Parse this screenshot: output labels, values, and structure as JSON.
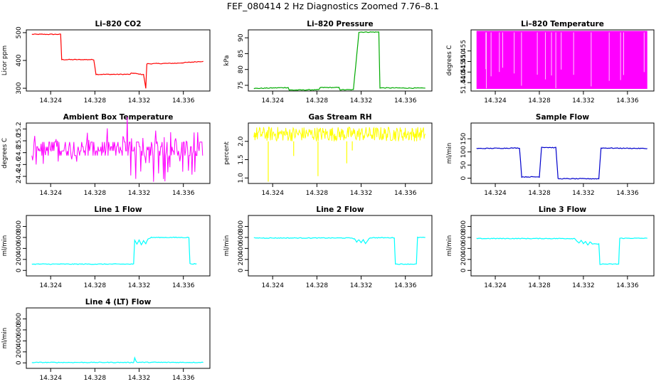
{
  "title": "FEF_080414  2 Hz Diagnostics Zoomed 7.76–8.1",
  "chart_data": [
    {
      "type": "line",
      "title": "Li–820 CO2",
      "ylabel": "Licor ppm",
      "color": "#ff0000",
      "xlim": [
        14.3218,
        14.3384
      ],
      "x_ticks": [
        "14.324",
        "14.328",
        "14.332",
        "14.336"
      ],
      "ylim": [
        290,
        510
      ],
      "y_ticks": [
        "300",
        "400",
        "500"
      ],
      "x": [
        14.3223,
        14.3249,
        14.325,
        14.3279,
        14.3281,
        14.3312,
        14.3313,
        14.3322,
        14.3324,
        14.3326,
        14.3327,
        14.3354,
        14.3378
      ],
      "y": [
        494,
        494,
        403,
        403,
        350,
        350,
        355,
        350,
        350,
        300,
        388,
        390,
        397
      ]
    },
    {
      "type": "line",
      "title": "Li–820 Pressure",
      "ylabel": "kPa",
      "color": "#00aa00",
      "xlim": [
        14.3218,
        14.3384
      ],
      "x_ticks": [
        "14.324",
        "14.328",
        "14.332",
        "14.336"
      ],
      "ylim": [
        73.2,
        92.5
      ],
      "y_ticks": [
        "75",
        "80",
        "85",
        "90"
      ],
      "x": [
        14.3223,
        14.3254,
        14.3255,
        14.3282,
        14.3283,
        14.33,
        14.3301,
        14.3313,
        14.3318,
        14.3336,
        14.3337,
        14.3378
      ],
      "y": [
        74,
        74.3,
        73.5,
        73.6,
        74.3,
        74.3,
        73.6,
        73.6,
        91.8,
        91.8,
        74.2,
        74.1
      ]
    },
    {
      "type": "line",
      "title": "Li–820 Temperature",
      "ylabel": "degrees C",
      "color": "#ff00ff",
      "xlim": [
        14.3218,
        14.3384
      ],
      "x_ticks": [
        "14.324",
        "14.328",
        "14.332",
        "14.336"
      ],
      "ylim": [
        51.436,
        51.465
      ],
      "y_ticks": [
        "51.440",
        "51.445",
        "51.450",
        "51.455"
      ],
      "band": [
        51.437,
        51.4645
      ],
      "x_range": [
        14.3223,
        14.3378
      ]
    },
    {
      "type": "line",
      "title": "Ambient Box Temperature",
      "ylabel": "degrees C",
      "color": "#ff00ff",
      "xlim": [
        14.3218,
        14.3384
      ],
      "x_ticks": [
        "14.324",
        "14.328",
        "14.332",
        "14.336"
      ],
      "ylim": [
        24.28,
        25.3
      ],
      "y_ticks": [
        "24.4",
        "24.6",
        "24.8",
        "25.0",
        "25.2"
      ],
      "levels": [
        24.75,
        24.83,
        24.9,
        24.98
      ],
      "x_range": [
        14.3223,
        14.3378
      ]
    },
    {
      "type": "line",
      "title": "Gas Stream RH",
      "ylabel": "percent",
      "color": "#ffff00",
      "xlim": [
        14.3218,
        14.3384
      ],
      "x_ticks": [
        "14.324",
        "14.328",
        "14.332",
        "14.336"
      ],
      "ylim": [
        0.85,
        2.5
      ],
      "y_ticks": [
        "1.0",
        "1.5",
        "2.0"
      ],
      "band": [
        2.0,
        2.4
      ],
      "x_range": [
        14.3223,
        14.3378
      ],
      "spikes_x": [
        14.3236,
        14.3281,
        14.3307,
        14.3259,
        14.3312
      ],
      "spikes_y": [
        0.9,
        1.05,
        1.4,
        1.6,
        1.75
      ]
    },
    {
      "type": "line",
      "title": "Sample Flow",
      "ylabel": "ml/min",
      "color": "#0000cc",
      "xlim": [
        14.3218,
        14.3384
      ],
      "x_ticks": [
        "14.324",
        "14.328",
        "14.332",
        "14.336"
      ],
      "ylim": [
        -20,
        210
      ],
      "y_ticks": [
        "0",
        "50",
        "100",
        "150"
      ],
      "x": [
        14.3223,
        14.3262,
        14.3264,
        14.328,
        14.3282,
        14.3295,
        14.3297,
        14.3334,
        14.3336,
        14.3378
      ],
      "y": [
        113,
        115,
        5,
        5,
        118,
        116,
        -2,
        -2,
        115,
        113
      ]
    },
    {
      "type": "line",
      "title": "Line 1 Flow",
      "ylabel": "ml/min",
      "color": "#00ffff",
      "xlim": [
        14.3218,
        14.3384
      ],
      "x_ticks": [
        "14.324",
        "14.328",
        "14.332",
        "14.336"
      ],
      "ylim": [
        -100,
        1000
      ],
      "y_ticks": [
        "0",
        "200",
        "400",
        "600",
        "800"
      ],
      "x": [
        14.3223,
        14.3315,
        14.3316,
        14.3318,
        14.332,
        14.3322,
        14.3324,
        14.3326,
        14.3328,
        14.333,
        14.3331,
        14.3358,
        14.3365,
        14.3366,
        14.3372
      ],
      "y": [
        115,
        115,
        545,
        480,
        560,
        470,
        540,
        490,
        570,
        590,
        600,
        600,
        600,
        120,
        120
      ]
    },
    {
      "type": "line",
      "title": "Line 2 Flow",
      "ylabel": "ml/min",
      "color": "#00ffff",
      "xlim": [
        14.3218,
        14.3384
      ],
      "x_ticks": [
        "14.324",
        "14.328",
        "14.332",
        "14.336"
      ],
      "ylim": [
        -100,
        1000
      ],
      "y_ticks": [
        "0",
        "200",
        "400",
        "600",
        "800"
      ],
      "x": [
        14.3223,
        14.3312,
        14.3314,
        14.3316,
        14.3318,
        14.332,
        14.3322,
        14.3324,
        14.3326,
        14.3328,
        14.335,
        14.3351,
        14.337,
        14.3371,
        14.3378
      ],
      "y": [
        590,
        590,
        570,
        520,
        560,
        500,
        560,
        490,
        550,
        595,
        595,
        115,
        115,
        600,
        600
      ]
    },
    {
      "type": "line",
      "title": "Line 3 Flow",
      "ylabel": "ml/min",
      "color": "#00ffff",
      "xlim": [
        14.3218,
        14.3384
      ],
      "x_ticks": [
        "14.324",
        "14.328",
        "14.332",
        "14.336"
      ],
      "ylim": [
        -100,
        1000
      ],
      "y_ticks": [
        "0",
        "200",
        "400",
        "600",
        "800"
      ],
      "x": [
        14.3223,
        14.3312,
        14.3314,
        14.3316,
        14.3318,
        14.332,
        14.3322,
        14.3324,
        14.3326,
        14.3328,
        14.3334,
        14.3335,
        14.3352,
        14.3353,
        14.3378
      ],
      "y": [
        580,
        580,
        540,
        500,
        550,
        480,
        530,
        460,
        520,
        480,
        480,
        115,
        115,
        585,
        585
      ]
    },
    {
      "type": "line",
      "title": "Line 4 (LT) Flow",
      "ylabel": "ml/min",
      "color": "#00ffff",
      "xlim": [
        14.3218,
        14.3384
      ],
      "x_ticks": [
        "14.324",
        "14.328",
        "14.332",
        "14.336"
      ],
      "ylim": [
        -100,
        1000
      ],
      "y_ticks": [
        "0",
        "200",
        "400",
        "600",
        "800"
      ],
      "x": [
        14.3223,
        14.3315,
        14.3316,
        14.3317,
        14.3318,
        14.3378
      ],
      "y": [
        8,
        8,
        90,
        40,
        10,
        8
      ]
    }
  ]
}
